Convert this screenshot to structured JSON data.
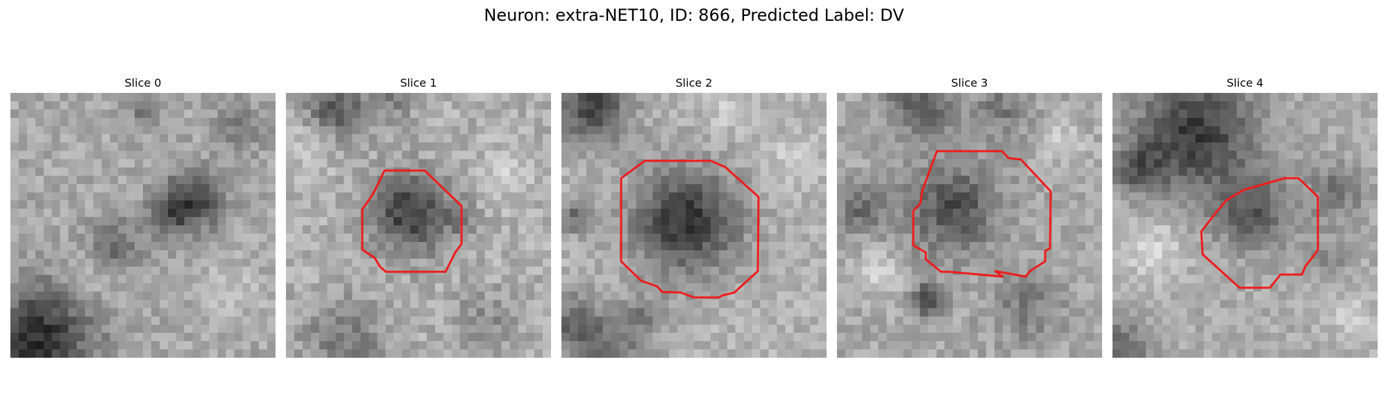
{
  "figure": {
    "title": "Neuron: extra-NET10, ID: 866, Predicted Label: DV",
    "colormap": "grayscale",
    "contour_color": "#ee1c1c"
  },
  "panels": [
    {
      "title": "Slice 0",
      "has_contour": false
    },
    {
      "title": "Slice 1",
      "has_contour": true
    },
    {
      "title": "Slice 2",
      "has_contour": true
    },
    {
      "title": "Slice 3",
      "has_contour": true
    },
    {
      "title": "Slice 4",
      "has_contour": true
    }
  ]
}
